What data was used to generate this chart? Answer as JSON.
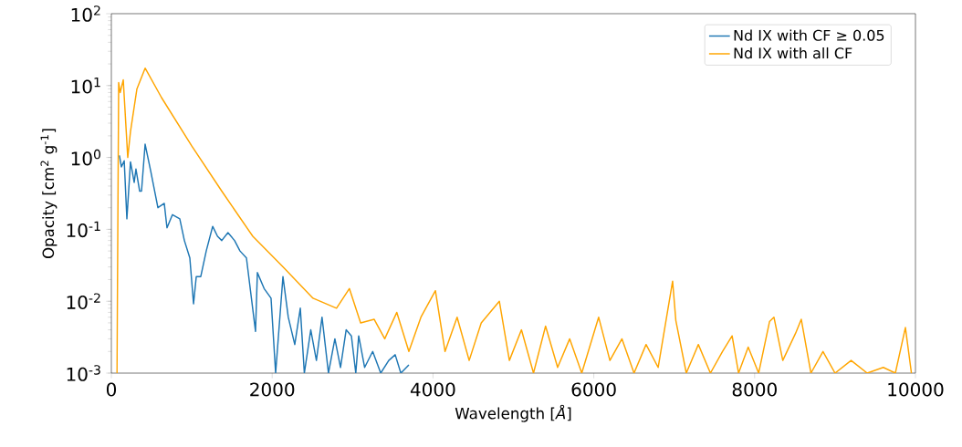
{
  "chart_data": {
    "type": "line",
    "xlabel": "Wavelength [*Å*]",
    "ylabel": "Opacity [cm$^{2}$ g$^{-1}$]",
    "log": "y",
    "legend": "top right",
    "xlim": [
      0,
      10000
    ],
    "ylim": [
      0.001,
      100
    ],
    "xticks": [
      0,
      2000,
      4000,
      6000,
      8000,
      10000
    ],
    "yticks": [
      {
        "value": 0.001,
        "label": "10$^{-3}$"
      },
      {
        "value": 0.01,
        "label": "10$^{-2}$"
      },
      {
        "value": 0.1,
        "label": "10$^{-1}$"
      },
      {
        "value": 1,
        "label": "10$^{0}$"
      },
      {
        "value": 10,
        "label": "10$^{1}$"
      },
      {
        "value": 100,
        "label": "10$^{2}$"
      }
    ],
    "series": [
      {
        "name": "Nd IX with CF ≥ 0.05",
        "color": "#1f77b4",
        "x": [
          100,
          125,
          160,
          193,
          238,
          284,
          306,
          352,
          375,
          420,
          488,
          579,
          658,
          692,
          760,
          851,
          908,
          976,
          1022,
          1056,
          1112,
          1180,
          1260,
          1320,
          1373,
          1450,
          1532,
          1600,
          1680,
          1793,
          1816,
          1900,
          1986,
          2043,
          2134,
          2200,
          2281,
          2350,
          2400,
          2480,
          2550,
          2620,
          2700,
          2780,
          2850,
          2920,
          2985,
          3040,
          3076,
          3150,
          3250,
          3350,
          3450,
          3530,
          3600,
          3700
        ],
        "values": [
          1.07,
          0.74,
          0.9,
          0.14,
          0.87,
          0.45,
          0.69,
          0.34,
          0.34,
          1.53,
          0.66,
          0.2,
          0.23,
          0.105,
          0.16,
          0.14,
          0.07,
          0.04,
          0.0092,
          0.022,
          0.022,
          0.05,
          0.11,
          0.08,
          0.07,
          0.09,
          0.07,
          0.05,
          0.04,
          0.0038,
          0.025,
          0.015,
          0.011,
          0.001,
          0.022,
          0.006,
          0.0025,
          0.008,
          0.001,
          0.004,
          0.0015,
          0.006,
          0.001,
          0.003,
          0.0012,
          0.004,
          0.0033,
          0.001,
          0.0033,
          0.0012,
          0.002,
          0.001,
          0.0015,
          0.0018,
          0.001,
          0.0013
        ]
      },
      {
        "name": "Nd IX with all CF",
        "color": "#ffa500",
        "x": [
          70,
          91,
          110,
          148,
          204,
          238,
          318,
          420,
          624,
          999,
          1373,
          1759,
          2134,
          2508,
          2800,
          2960,
          3100,
          3269,
          3400,
          3550,
          3700,
          3850,
          4030,
          4150,
          4300,
          4450,
          4600,
          4825,
          4950,
          5100,
          5250,
          5400,
          5550,
          5700,
          5850,
          6060,
          6200,
          6350,
          6500,
          6650,
          6800,
          6980,
          7020,
          7150,
          7300,
          7450,
          7600,
          7720,
          7800,
          7920,
          8050,
          8185,
          8240,
          8350,
          8510,
          8580,
          8700,
          8850,
          9000,
          9200,
          9400,
          9600,
          9750,
          9875,
          9950
        ],
        "values": [
          0.001,
          11,
          8,
          12,
          1.0,
          2.3,
          9,
          17.5,
          6.8,
          1.45,
          0.34,
          0.08,
          0.03,
          0.011,
          0.008,
          0.015,
          0.005,
          0.0056,
          0.003,
          0.007,
          0.002,
          0.006,
          0.014,
          0.002,
          0.006,
          0.0015,
          0.005,
          0.01,
          0.0015,
          0.004,
          0.001,
          0.0045,
          0.0012,
          0.003,
          0.001,
          0.006,
          0.0015,
          0.003,
          0.001,
          0.0025,
          0.0012,
          0.019,
          0.0054,
          0.001,
          0.0025,
          0.001,
          0.002,
          0.0033,
          0.001,
          0.0023,
          0.001,
          0.0052,
          0.006,
          0.0015,
          0.0036,
          0.0056,
          0.001,
          0.002,
          0.001,
          0.0015,
          0.001,
          0.0012,
          0.001,
          0.0043,
          0.001
        ]
      }
    ]
  }
}
